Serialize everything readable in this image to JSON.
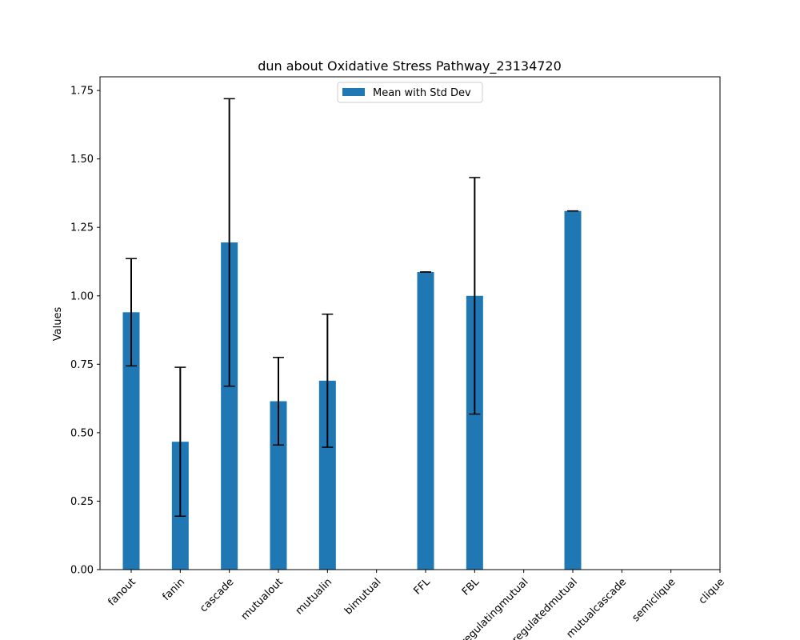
{
  "chart_data": {
    "type": "bar",
    "title": "dun about Oxidative Stress Pathway_23134720",
    "xlabel": "",
    "ylabel": "Values",
    "ylim": [
      0,
      1.8
    ],
    "yticks": [
      "0.00",
      "0.25",
      "0.50",
      "0.75",
      "1.00",
      "1.25",
      "1.50",
      "1.75"
    ],
    "categories": [
      "fanout",
      "fanin",
      "cascade",
      "mutualout",
      "mutualin",
      "bimutual",
      "FFL",
      "FBL",
      "regulatingmutual",
      "regulatedmutual",
      "mutualcascade",
      "semiclique",
      "clique"
    ],
    "series": [
      {
        "name": "Mean with Std Dev",
        "values": [
          0.94,
          0.467,
          1.195,
          0.615,
          0.69,
          null,
          1.087,
          1.0,
          null,
          1.31,
          null,
          null,
          null
        ],
        "std": [
          0.196,
          0.272,
          0.525,
          0.16,
          0.243,
          null,
          0.0,
          0.432,
          null,
          0.0,
          null,
          null,
          null
        ]
      }
    ],
    "legend_position": "top-center",
    "grid": false,
    "colors": {
      "bar": "#1f77b4",
      "errorbar": "#000000",
      "axes": "#000000"
    }
  }
}
